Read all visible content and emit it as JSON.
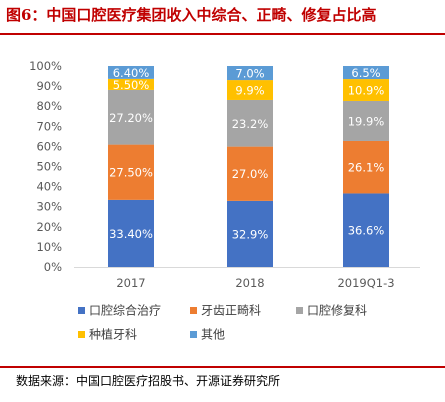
{
  "header": {
    "title": "图6：中国口腔医疗集团收入中综合、正畸、修复占比高"
  },
  "footer": {
    "source": "数据来源：中国口腔医疗招股书、开源证券研究所"
  },
  "chart_data": {
    "type": "bar",
    "stacked": true,
    "categories": [
      "2017",
      "2018",
      "2019Q1-3"
    ],
    "series": [
      {
        "name": "口腔综合治疗",
        "values": [
          33.4,
          32.9,
          36.6
        ],
        "labels": [
          "33.40%",
          "32.9%",
          "36.6%"
        ],
        "color": "#4472c4",
        "label_color": "#ffffff"
      },
      {
        "name": "牙齿正畸科",
        "values": [
          27.5,
          27.0,
          26.1
        ],
        "labels": [
          "27.50%",
          "27.0%",
          "26.1%"
        ],
        "color": "#ed7d31",
        "label_color": "#ffffff"
      },
      {
        "name": "口腔修复科",
        "values": [
          27.2,
          23.2,
          19.9
        ],
        "labels": [
          "27.20%",
          "23.2%",
          "19.9%"
        ],
        "color": "#a5a5a5",
        "label_color": "#ffffff"
      },
      {
        "name": "种植牙科",
        "values": [
          5.5,
          9.9,
          10.9
        ],
        "labels": [
          "5.50%",
          "9.9%",
          "10.9%"
        ],
        "color": "#ffc000",
        "label_color": "#ffffff"
      },
      {
        "name": "其他",
        "values": [
          6.4,
          7.0,
          6.5
        ],
        "labels": [
          "6.40%",
          "7.0%",
          "6.5%"
        ],
        "color": "#5b9bd5",
        "label_color": "#ffffff"
      }
    ],
    "ylim": [
      0,
      100
    ],
    "yticks": [
      "0%",
      "10%",
      "20%",
      "30%",
      "40%",
      "50%",
      "60%",
      "70%",
      "80%",
      "90%",
      "100%"
    ],
    "grid": false,
    "legend_position": "bottom"
  }
}
